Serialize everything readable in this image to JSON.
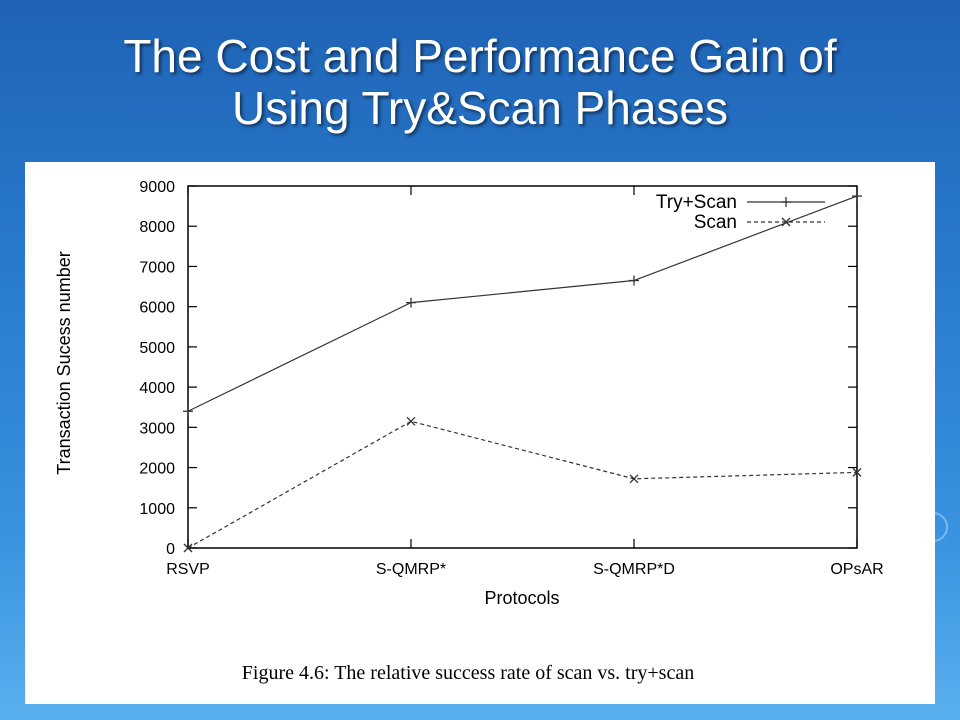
{
  "slide": {
    "title_line1": "The Cost and Performance Gain of",
    "title_line2": "Using Try&Scan Phases"
  },
  "chart_data": {
    "type": "line",
    "categories": [
      "RSVP",
      "S-QMRP*",
      "S-QMRP*D",
      "OPsAR"
    ],
    "series": [
      {
        "name": "Try+Scan",
        "values": [
          3400,
          6100,
          6650,
          8750
        ],
        "style": "solid",
        "marker": "+"
      },
      {
        "name": "Scan",
        "values": [
          0,
          3150,
          1720,
          1880
        ],
        "style": "dashed",
        "marker": "x"
      }
    ],
    "title": "",
    "xlabel": "Protocols",
    "ylabel": "Transaction Sucess number",
    "ylim": [
      0,
      9000
    ],
    "yticks": [
      0,
      1000,
      2000,
      3000,
      4000,
      5000,
      6000,
      7000,
      8000,
      9000
    ],
    "grid": false,
    "legend_position": "top-right",
    "caption": "Figure 4.6: The relative success rate of scan vs. try+scan",
    "colors": {
      "line": "#333333",
      "axis": "#000000"
    }
  }
}
